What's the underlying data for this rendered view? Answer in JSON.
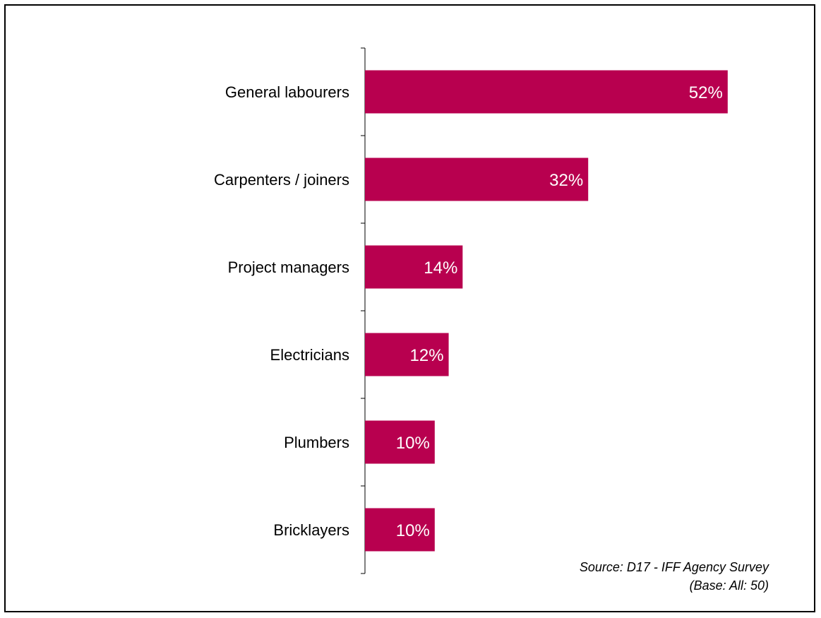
{
  "chart_data": {
    "type": "bar",
    "orientation": "horizontal",
    "categories": [
      "General labourers",
      "Carpenters / joiners",
      "Project managers",
      "Electricians",
      "Plumbers",
      "Bricklayers"
    ],
    "values": [
      52,
      32,
      14,
      12,
      10,
      10
    ],
    "value_labels": [
      "52%",
      "32%",
      "14%",
      "12%",
      "10%",
      "10%"
    ],
    "unit": "%",
    "bar_color": "#b8004f",
    "xlim": [
      0,
      59
    ],
    "grid": false,
    "legend": "none"
  },
  "source": {
    "line1": "Source: D17 - IFF Agency Survey",
    "line2": "(Base: All: 50)"
  }
}
